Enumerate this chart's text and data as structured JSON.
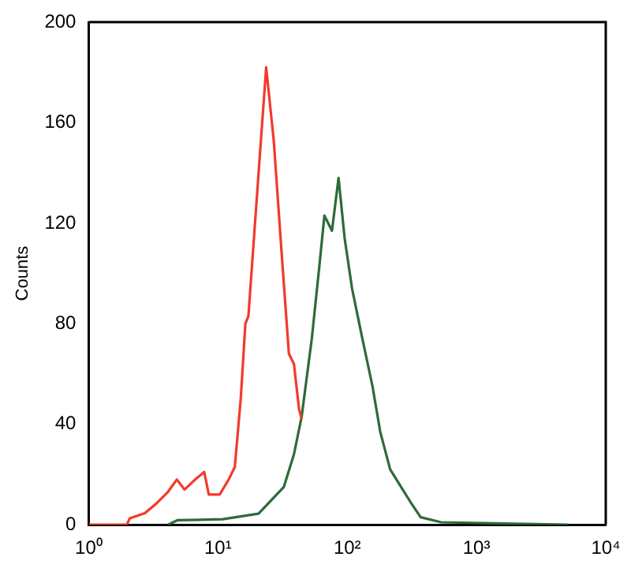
{
  "chart_data": {
    "type": "line",
    "ylabel": "Counts",
    "log": "x",
    "xlim": [
      1,
      10000
    ],
    "xticks": [
      {
        "value": 1,
        "label": "10⁰"
      },
      {
        "value": 10,
        "label": "10¹"
      },
      {
        "value": 100,
        "label": "10²"
      },
      {
        "value": 1000,
        "label": "10³"
      },
      {
        "value": 10000,
        "label": "10⁴"
      }
    ],
    "ylim": [
      0,
      200
    ],
    "yticks": [
      0,
      40,
      80,
      120,
      160,
      200
    ],
    "grid": false,
    "legend": false,
    "marker": "none",
    "line_style": "solid",
    "series": [
      {
        "color": "#f23a2a",
        "x": [
          1,
          1.97,
          2.08,
          2.72,
          3.38,
          4.09,
          4.81,
          5.51,
          6.66,
          7.83,
          8.5,
          10.3,
          12.1,
          13.5,
          15.0,
          16.3,
          17.2,
          18.8,
          21.5,
          23.6,
          27.0,
          31.0,
          35.4,
          38.7,
          42.4,
          44.4
        ],
        "values": [
          0,
          0,
          2.6,
          4.6,
          8.7,
          13,
          18,
          14,
          18,
          21,
          12,
          12,
          18,
          23,
          50,
          80,
          83,
          111,
          153,
          182,
          153,
          109,
          68,
          64,
          46,
          42
        ]
      },
      {
        "color": "#2d6b38",
        "x": [
          4.1,
          4.85,
          10.9,
          20.6,
          32.3,
          38.7,
          44.4,
          53.2,
          60.9,
          66.6,
          76.2,
          85.7,
          95.5,
          109,
          131,
          157,
          180,
          215,
          309,
          370,
          532,
          5080
        ],
        "values": [
          0,
          1.8,
          2.2,
          4.4,
          15,
          28,
          43,
          74,
          103,
          123,
          117,
          138,
          114,
          94,
          74,
          55,
          37,
          22,
          9,
          3,
          1,
          0
        ]
      }
    ]
  }
}
